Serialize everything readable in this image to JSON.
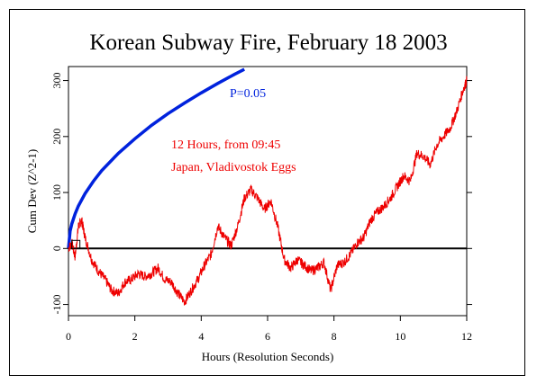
{
  "chart_data": {
    "type": "line",
    "title": "Korean Subway Fire, February 18 2003",
    "xlabel": "Hours (Resolution Seconds)",
    "ylabel": "Cum Dev (Z^2-1)",
    "xlim": [
      0,
      12
    ],
    "ylim": [
      -120,
      325
    ],
    "x_ticks": [
      0,
      2,
      4,
      6,
      8,
      10,
      12
    ],
    "y_ticks": [
      -100,
      0,
      100,
      200,
      300
    ],
    "grid": false,
    "annotations": [
      "12 Hours, from 09:45",
      "Japan, Vladivostok Eggs"
    ],
    "series": [
      {
        "name": "P=0.05",
        "color": "#0022dd",
        "kind": "probability-envelope",
        "x": [
          0,
          0.05,
          0.1,
          0.2,
          0.3,
          0.5,
          0.75,
          1,
          1.5,
          2,
          2.5,
          3,
          3.5,
          4,
          4.5,
          5,
          5.3
        ],
        "y": [
          0,
          31,
          44,
          62,
          76,
          98,
          120,
          139,
          170,
          196,
          220,
          241,
          260,
          278,
          295,
          311,
          320
        ]
      },
      {
        "name": "",
        "color": "#ee0000",
        "kind": "cumulative-deviation",
        "x": [
          0,
          0.1,
          0.2,
          0.3,
          0.4,
          0.5,
          0.7,
          0.9,
          1.1,
          1.3,
          1.5,
          1.7,
          1.9,
          2.1,
          2.3,
          2.5,
          2.7,
          2.9,
          3.1,
          3.3,
          3.5,
          3.7,
          3.9,
          4.1,
          4.3,
          4.5,
          4.7,
          4.9,
          5.1,
          5.3,
          5.5,
          5.7,
          5.9,
          6.1,
          6.3,
          6.5,
          6.7,
          6.9,
          7.1,
          7.3,
          7.5,
          7.7,
          7.9,
          8.1,
          8.3,
          8.5,
          8.7,
          8.9,
          9.1,
          9.3,
          9.5,
          9.7,
          9.9,
          10.1,
          10.3,
          10.5,
          10.7,
          10.9,
          11.1,
          11.3,
          11.5,
          11.7,
          11.9,
          12
        ],
        "y": [
          0,
          10,
          -15,
          40,
          50,
          20,
          -20,
          -40,
          -55,
          -75,
          -80,
          -60,
          -55,
          -45,
          -50,
          -45,
          -35,
          -55,
          -60,
          -80,
          -95,
          -75,
          -55,
          -30,
          -10,
          40,
          20,
          5,
          40,
          90,
          105,
          90,
          70,
          85,
          40,
          -20,
          -35,
          -20,
          -30,
          -40,
          -35,
          -25,
          -75,
          -30,
          -25,
          -10,
          10,
          20,
          50,
          65,
          75,
          90,
          110,
          130,
          120,
          170,
          165,
          150,
          185,
          200,
          215,
          245,
          285,
          300
        ]
      }
    ]
  }
}
